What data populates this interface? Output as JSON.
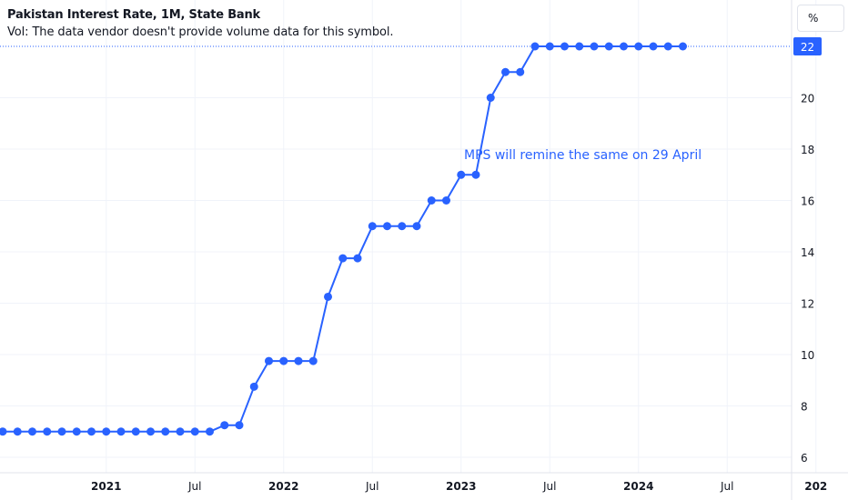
{
  "header": {
    "title": "Pakistan Interest Rate, 1M, State Bank",
    "subtitle": "Vol: The data vendor doesn't provide volume data for this symbol."
  },
  "unit_button": "%",
  "annotation": "MPS will remine the same on 29 April",
  "colors": {
    "line": "#2962ff",
    "annotation": "#2962ff",
    "grid": "#f0f3fa",
    "axis": "#e0e3eb",
    "text": "#131722",
    "price_tag": "#2962ff"
  },
  "chart_data": {
    "type": "line",
    "title": "Pakistan Interest Rate, 1M, State Bank",
    "y_axis_side": "right",
    "ylim": [
      6,
      22.3
    ],
    "y_ticks": [
      6,
      8,
      10,
      12,
      14,
      16,
      18,
      20
    ],
    "x_ticks": [
      {
        "date": "2021-01",
        "label": "2021",
        "bold": true
      },
      {
        "date": "2021-07",
        "label": "Jul",
        "bold": false
      },
      {
        "date": "2022-01",
        "label": "2022",
        "bold": true
      },
      {
        "date": "2022-07",
        "label": "Jul",
        "bold": false
      },
      {
        "date": "2023-01",
        "label": "2023",
        "bold": true
      },
      {
        "date": "2023-07",
        "label": "Jul",
        "bold": false
      },
      {
        "date": "2024-01",
        "label": "2024",
        "bold": true
      },
      {
        "date": "2024-07",
        "label": "Jul",
        "bold": false
      },
      {
        "date": "2025-01",
        "label": "202",
        "bold": true
      }
    ],
    "last_value_label": "22",
    "series": [
      {
        "x": [
          "2020-06",
          "2020-07",
          "2020-08",
          "2020-09",
          "2020-10",
          "2020-11",
          "2020-12",
          "2021-01",
          "2021-02",
          "2021-03",
          "2021-04",
          "2021-05",
          "2021-06",
          "2021-07",
          "2021-08",
          "2021-09",
          "2021-10",
          "2021-11",
          "2021-12",
          "2022-01",
          "2022-02",
          "2022-03",
          "2022-04",
          "2022-05",
          "2022-06",
          "2022-07",
          "2022-08",
          "2022-09",
          "2022-10",
          "2022-11",
          "2022-12",
          "2023-01",
          "2023-02",
          "2023-03",
          "2023-04",
          "2023-05",
          "2023-06",
          "2023-07",
          "2023-08",
          "2023-09",
          "2023-10",
          "2023-11",
          "2023-12",
          "2024-01",
          "2024-02",
          "2024-03",
          "2024-04"
        ],
        "values": [
          7,
          7,
          7,
          7,
          7,
          7,
          7,
          7,
          7,
          7,
          7,
          7,
          7,
          7,
          7,
          7.25,
          7.25,
          8.75,
          9.75,
          9.75,
          9.75,
          9.75,
          12.25,
          13.75,
          13.75,
          15,
          15,
          15,
          15,
          16,
          16,
          17,
          17,
          20,
          21,
          21,
          22,
          22,
          22,
          22,
          22,
          22,
          22,
          22,
          22,
          22,
          22
        ]
      }
    ]
  }
}
